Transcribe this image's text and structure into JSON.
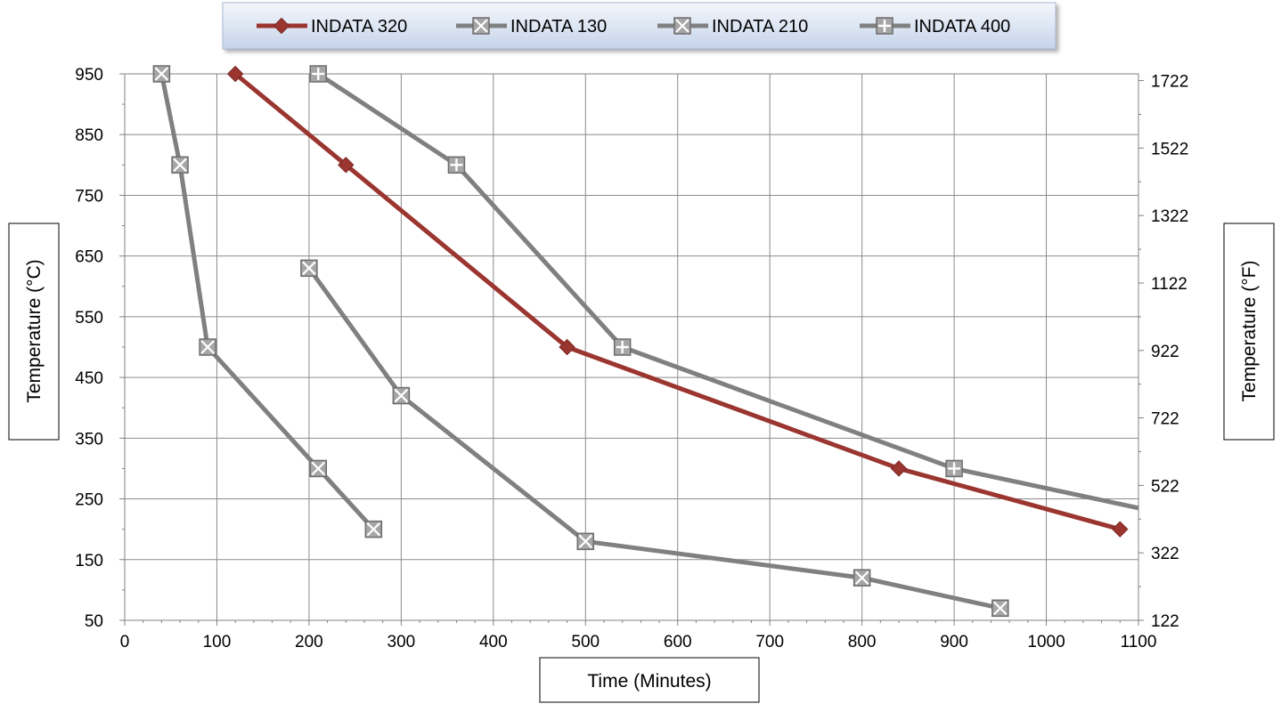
{
  "chart_data": {
    "type": "line",
    "title": "",
    "xlabel": "Time (Minutes)",
    "ylabel": "Temperature (°C)",
    "y2label": "Temperature (°F)",
    "xlim": [
      0,
      1100
    ],
    "ylim": [
      50,
      950
    ],
    "y2lim": [
      122,
      1742
    ],
    "x_ticks": [
      0,
      100,
      200,
      300,
      400,
      500,
      600,
      700,
      800,
      900,
      1000,
      1100
    ],
    "y_ticks": [
      50,
      150,
      250,
      350,
      450,
      550,
      650,
      750,
      850,
      950
    ],
    "y2_ticks": [
      122,
      322,
      522,
      722,
      922,
      1122,
      1322,
      1522,
      1722
    ],
    "grid": true,
    "legend_position": "top",
    "series": [
      {
        "name": "INDATA 320",
        "color": "#9b3530",
        "marker": "diamond",
        "points": [
          [
            120,
            950
          ],
          [
            240,
            800
          ],
          [
            480,
            500
          ],
          [
            840,
            300
          ],
          [
            1080,
            200
          ]
        ]
      },
      {
        "name": "INDATA 130",
        "color": "#808080",
        "marker": "box-x",
        "points": [
          [
            40,
            950
          ],
          [
            60,
            800
          ],
          [
            90,
            500
          ],
          [
            210,
            300
          ],
          [
            270,
            200
          ]
        ]
      },
      {
        "name": "INDATA 210",
        "color": "#808080",
        "marker": "box-x",
        "points": [
          [
            200,
            630
          ],
          [
            300,
            420
          ],
          [
            500,
            180
          ],
          [
            800,
            120
          ],
          [
            950,
            70
          ]
        ]
      },
      {
        "name": "INDATA 400",
        "color": "#808080",
        "marker": "box-plus",
        "points": [
          [
            210,
            950
          ],
          [
            360,
            800
          ],
          [
            540,
            500
          ],
          [
            900,
            300
          ],
          [
            1100,
            235
          ]
        ]
      }
    ]
  }
}
